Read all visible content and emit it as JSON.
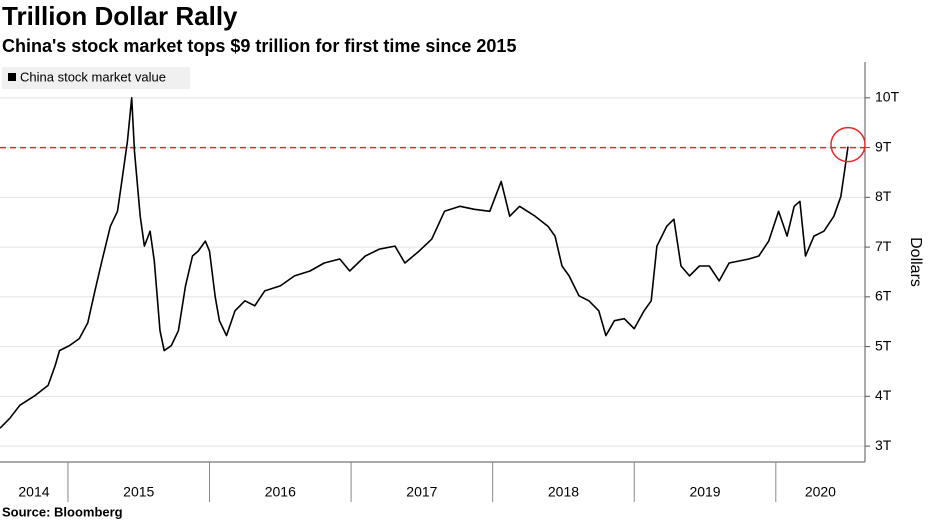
{
  "chart_data": {
    "type": "line",
    "title": "Trillion Dollar Rally",
    "subtitle": "China's stock market tops $9 trillion for first time since 2015",
    "y_axis_label": "Dollars",
    "source": "Source: Bloomberg",
    "x": [
      2014.52,
      2014.59,
      2014.66,
      2014.77,
      2014.86,
      2014.91,
      2014.94,
      2015.01,
      2015.08,
      2015.14,
      2015.19,
      2015.24,
      2015.3,
      2015.35,
      2015.38,
      2015.42,
      2015.45,
      2015.47,
      2015.51,
      2015.54,
      2015.58,
      2015.61,
      2015.65,
      2015.68,
      2015.73,
      2015.78,
      2015.83,
      2015.88,
      2015.92,
      2015.97,
      2016.0,
      2016.04,
      2016.07,
      2016.12,
      2016.18,
      2016.25,
      2016.32,
      2016.39,
      2016.5,
      2016.6,
      2016.71,
      2016.81,
      2016.92,
      2016.99,
      2017.1,
      2017.2,
      2017.31,
      2017.38,
      2017.48,
      2017.57,
      2017.66,
      2017.77,
      2017.87,
      2017.98,
      2018.06,
      2018.12,
      2018.19,
      2018.3,
      2018.39,
      2018.44,
      2018.49,
      2018.54,
      2018.61,
      2018.68,
      2018.75,
      2018.8,
      2018.86,
      2018.93,
      2019.0,
      2019.07,
      2019.12,
      2019.16,
      2019.23,
      2019.28,
      2019.33,
      2019.39,
      2019.46,
      2019.53,
      2019.6,
      2019.67,
      2019.74,
      2019.81,
      2019.88,
      2019.95,
      2020.02,
      2020.08,
      2020.13,
      2020.17,
      2020.21,
      2020.27,
      2020.34,
      2020.41,
      2020.46,
      2020.49,
      2020.51
    ],
    "series": [
      {
        "name": "China stock market value",
        "color": "#000000",
        "values": [
          3.36,
          3.56,
          3.82,
          4.02,
          4.22,
          4.62,
          4.92,
          5.02,
          5.16,
          5.48,
          6.12,
          6.72,
          7.42,
          7.72,
          8.32,
          9.12,
          10.0,
          8.92,
          7.62,
          7.02,
          7.32,
          6.72,
          5.32,
          4.92,
          5.02,
          5.32,
          6.22,
          6.82,
          6.92,
          7.12,
          6.92,
          6.0,
          5.52,
          5.22,
          5.72,
          5.92,
          5.82,
          6.12,
          6.22,
          6.42,
          6.52,
          6.68,
          6.76,
          6.52,
          6.82,
          6.96,
          7.02,
          6.68,
          6.92,
          7.16,
          7.72,
          7.82,
          7.76,
          7.72,
          8.32,
          7.62,
          7.82,
          7.62,
          7.42,
          7.22,
          6.62,
          6.42,
          6.02,
          5.92,
          5.72,
          5.22,
          5.52,
          5.56,
          5.36,
          5.72,
          5.92,
          7.02,
          7.42,
          7.56,
          6.62,
          6.42,
          6.62,
          6.62,
          6.32,
          6.68,
          6.72,
          6.76,
          6.82,
          7.12,
          7.72,
          7.22,
          7.82,
          7.92,
          6.82,
          7.22,
          7.32,
          7.62,
          8.02,
          8.62,
          9.02
        ]
      }
    ],
    "xlim": [
      2014.52,
      2020.63
    ],
    "xticks": [
      2014,
      2015,
      2016,
      2017,
      2018,
      2019,
      2020
    ],
    "ylim": [
      2.68,
      10.72
    ],
    "yticks": [
      {
        "value": 3,
        "label": "3T"
      },
      {
        "value": 4,
        "label": "4T"
      },
      {
        "value": 5,
        "label": "5T"
      },
      {
        "value": 6,
        "label": "6T"
      },
      {
        "value": 7,
        "label": "7T"
      },
      {
        "value": 8,
        "label": "8T"
      },
      {
        "value": 9,
        "label": "9T"
      },
      {
        "value": 10,
        "label": "10T"
      }
    ],
    "grid": true,
    "legend": "top-left",
    "reference_line": {
      "value": 9,
      "color": "#e8282b"
    }
  }
}
